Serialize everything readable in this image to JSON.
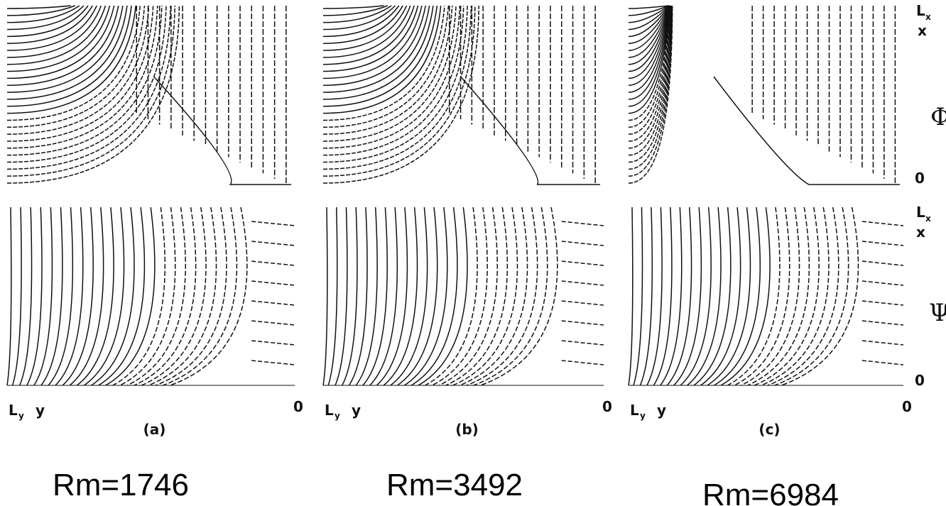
{
  "panels": [
    {
      "label": "(a)",
      "caption": "Rm=1746",
      "y_start": "L",
      "y_start_sub": "y",
      "y_axis": "y",
      "y_end": "0"
    },
    {
      "label": "(b)",
      "caption": "Rm=3492",
      "y_start": "L",
      "y_start_sub": "y",
      "y_axis": "y",
      "y_end": "0"
    },
    {
      "label": "(c)",
      "caption": "Rm=6984",
      "y_start": "L",
      "y_start_sub": "y",
      "y_axis": "y",
      "y_end": "0"
    }
  ],
  "side": {
    "top": {
      "start": "L",
      "start_sub": "x",
      "axis": "x",
      "field": "Φ",
      "end": "0"
    },
    "bottom": {
      "start": "L",
      "start_sub": "x",
      "axis": "x",
      "field": "Ψ",
      "end": "0"
    }
  }
}
